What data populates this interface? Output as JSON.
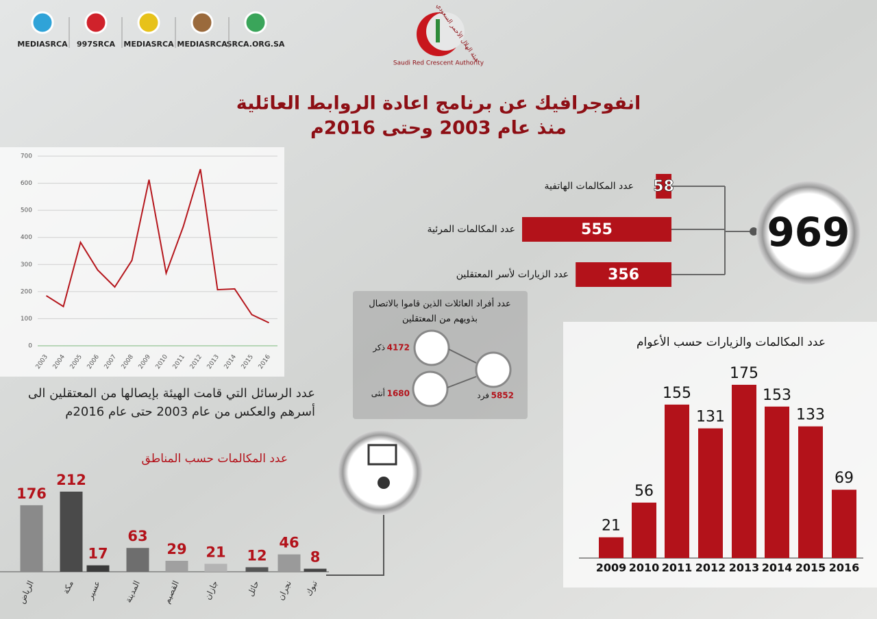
{
  "header": {
    "social": [
      "MEDIASRCA",
      "997SRCA",
      "MEDIASRCA",
      "MEDIASRCA",
      "SRCA.ORG.SA"
    ],
    "logo_ar": "هيئة الهلال الأحمر السعودي",
    "logo_en": "Saudi Red Crescent Authority",
    "title": [
      "انفوجرافيك عن برنامج اعادة الروابط العائلية",
      "منذ عام 2003 وحتى 2016م"
    ]
  },
  "family": {
    "title": [
      "عدد أفراد العائلات الذين قاموا بالاتصال",
      "بذويهم من المعتقلين"
    ],
    "male": {
      "value": 4172,
      "label": "ذكر"
    },
    "female": {
      "value": 1680,
      "label": "أنثى"
    },
    "total": {
      "value": 5852,
      "label": "فرد"
    }
  },
  "chart_data": [
    {
      "type": "line",
      "caption": [
        "عدد الرسائل التي قامت الهيئة بإيصالها من المعتقلين الى",
        "أسرهم والعكس من عام 2003 حتى عام 2016م"
      ],
      "categories": [
        "2003",
        "2004",
        "2005",
        "2006",
        "2007",
        "2008",
        "2009",
        "2010",
        "2011",
        "2012",
        "2013",
        "2014",
        "2015",
        "2016"
      ],
      "values": [
        185,
        145,
        382,
        280,
        217,
        315,
        613,
        268,
        440,
        652,
        207,
        210,
        115,
        85
      ],
      "color": "#b5161c",
      "ylim": [
        0,
        700
      ],
      "yticks": [
        0,
        100,
        200,
        300,
        400,
        500,
        600,
        700
      ],
      "grid": true
    },
    {
      "type": "hbar",
      "categories": [
        "عدد المكالمات الهاتفية",
        "عدد المكالمات المرئية",
        "عدد الزيارات لأسر المعتقلين"
      ],
      "values": [
        58,
        555,
        356
      ],
      "total": 969,
      "color": "#b3121a"
    },
    {
      "type": "bar",
      "title": "عدد المكالمات والزيارات حسب الأعوام",
      "categories": [
        "2009",
        "2010",
        "2011",
        "2012",
        "2013",
        "2014",
        "2015",
        "2016"
      ],
      "values": [
        21,
        56,
        155,
        131,
        175,
        153,
        133,
        69
      ],
      "color": "#b3121a"
    },
    {
      "type": "bar",
      "title": "عدد المكالمات حسب المناطق",
      "categories": [
        "الرياض",
        "مكة",
        "عسير",
        "المدينة",
        "القصيم",
        "جازان",
        "حائل",
        "نجران",
        "تبوك"
      ],
      "values": [
        176,
        212,
        17,
        63,
        29,
        21,
        12,
        46,
        8
      ],
      "colors": [
        "#8a8a8a",
        "#4a4a4a",
        "#3a3a3a",
        "#6e6e6e",
        "#a0a0a0",
        "#b4b4b4",
        "#555555",
        "#9a9a9a",
        "#444444"
      ]
    }
  ]
}
